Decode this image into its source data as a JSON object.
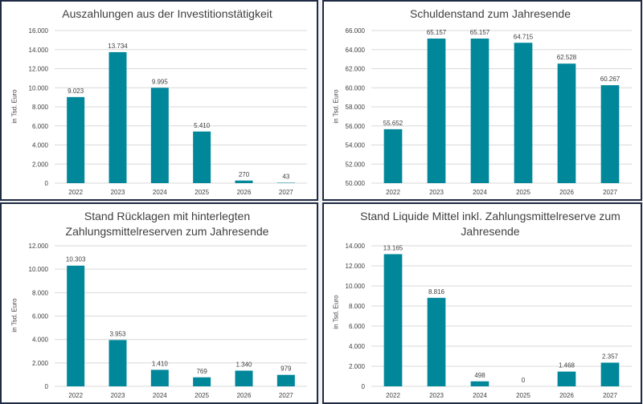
{
  "colors": {
    "bar": "#00879a",
    "grid": "#d9d9d9",
    "text": "#404040",
    "border": "#1f2a44"
  },
  "chart_data": [
    {
      "type": "bar",
      "title": "Auszahlungen aus der Investitionstätigkeit",
      "ylabel": "in Tsd. Euro",
      "categories": [
        "2022",
        "2023",
        "2024",
        "2025",
        "2026",
        "2027"
      ],
      "values": [
        9023,
        13734,
        9995,
        5410,
        270,
        43
      ],
      "value_labels": [
        "9.023",
        "13.734",
        "9.995",
        "5.410",
        "270",
        "43"
      ],
      "ylim": [
        0,
        16000
      ],
      "yticks": [
        0,
        2000,
        4000,
        6000,
        8000,
        10000,
        12000,
        14000,
        16000
      ],
      "ytick_labels": [
        "0",
        "2.000",
        "4.000",
        "6.000",
        "8.000",
        "10.000",
        "12.000",
        "14.000",
        "16.000"
      ]
    },
    {
      "type": "bar",
      "title": "Schuldenstand zum Jahresende",
      "ylabel": "in Tsd. Euro",
      "categories": [
        "2022",
        "2023",
        "2024",
        "2025",
        "2026",
        "2027"
      ],
      "values": [
        55652,
        65157,
        65157,
        64715,
        62528,
        60267
      ],
      "value_labels": [
        "55.652",
        "65.157",
        "65.157",
        "64.715",
        "62.528",
        "60.267"
      ],
      "ylim": [
        50000,
        66000
      ],
      "yticks": [
        50000,
        52000,
        54000,
        56000,
        58000,
        60000,
        62000,
        64000,
        66000
      ],
      "ytick_labels": [
        "50.000",
        "52.000",
        "54.000",
        "56.000",
        "58.000",
        "60.000",
        "62.000",
        "64.000",
        "66.000"
      ]
    },
    {
      "type": "bar",
      "title": "Stand Rücklagen mit hinterlegten Zahlungsmittelreserven zum Jahresende",
      "title_lines": [
        "Stand Rücklagen mit hinterlegten",
        "Zahlungsmittelreserven zum Jahresende"
      ],
      "ylabel": "in Tsd. Euro",
      "categories": [
        "2022",
        "2023",
        "2024",
        "2025",
        "2026",
        "2027"
      ],
      "values": [
        10303,
        3953,
        1410,
        769,
        1340,
        979
      ],
      "value_labels": [
        "10.303",
        "3.953",
        "1.410",
        "769",
        "1.340",
        "979"
      ],
      "ylim": [
        0,
        12000
      ],
      "yticks": [
        0,
        2000,
        4000,
        6000,
        8000,
        10000,
        12000
      ],
      "ytick_labels": [
        "0",
        "2.000",
        "4.000",
        "6.000",
        "8.000",
        "10.000",
        "12.000"
      ]
    },
    {
      "type": "bar",
      "title": "Stand Liquide Mittel inkl. Zahlungsmittelreserve zum Jahresende",
      "title_lines": [
        "Stand Liquide Mittel inkl. Zahlungsmittelreserve zum",
        "Jahresende"
      ],
      "ylabel": "in Tsd. Euro",
      "categories": [
        "2022",
        "2023",
        "2024",
        "2025",
        "2026",
        "2027"
      ],
      "values": [
        13165,
        8816,
        498,
        0,
        1468,
        2357
      ],
      "value_labels": [
        "13.165",
        "8.816",
        "498",
        "0",
        "1.468",
        "2.357"
      ],
      "ylim": [
        0,
        14000
      ],
      "yticks": [
        0,
        2000,
        4000,
        6000,
        8000,
        10000,
        12000,
        14000
      ],
      "ytick_labels": [
        "0",
        "2.000",
        "4.000",
        "6.000",
        "8.000",
        "10.000",
        "12.000",
        "14.000"
      ]
    }
  ]
}
